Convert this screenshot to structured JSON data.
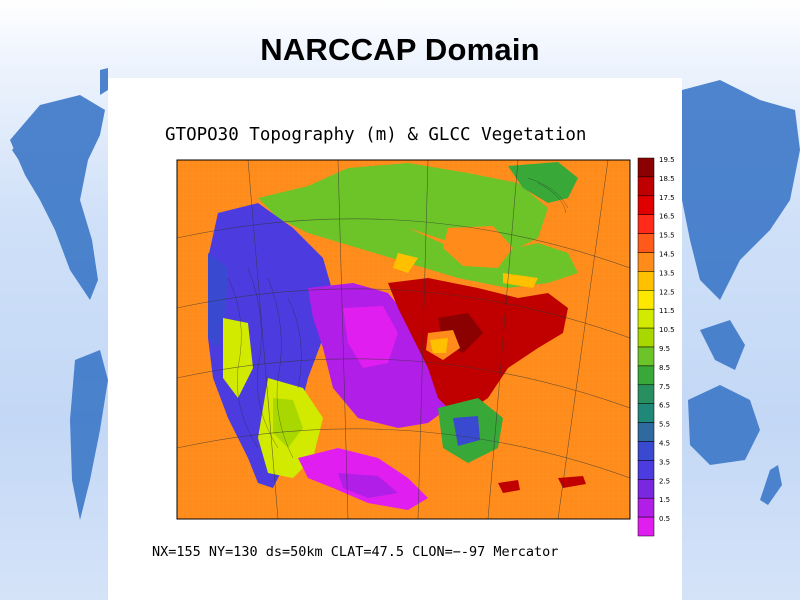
{
  "slide": {
    "title": "NARCCAP Domain"
  },
  "figure": {
    "title": "GTOPO30 Topography (m) & GLCC Vegetation",
    "caption": "NX=155 NY=130 ds=50km CLAT=47.5 CLON=−-97 Mercator"
  },
  "legend": {
    "labels": [
      "19.5",
      "18.5",
      "17.5",
      "16.5",
      "15.5",
      "14.5",
      "13.5",
      "12.5",
      "11.5",
      "10.5",
      "9.5",
      "8.5",
      "7.5",
      "6.5",
      "5.5",
      "4.5",
      "3.5",
      "2.5",
      "1.5",
      "0.5"
    ],
    "colors": [
      "#8b0000",
      "#c00000",
      "#e00000",
      "#ff2a1a",
      "#ff5a1a",
      "#ff8c1a",
      "#ffc000",
      "#ffe800",
      "#d2ea00",
      "#a8d800",
      "#6cc428",
      "#38a838",
      "#289060",
      "#208878",
      "#2e6aa0",
      "#3a4ad0",
      "#4c3ce0",
      "#7a28e0",
      "#b01ee8",
      "#e01ef0"
    ]
  },
  "map": {
    "ocean_color": "#ff8c1a"
  }
}
